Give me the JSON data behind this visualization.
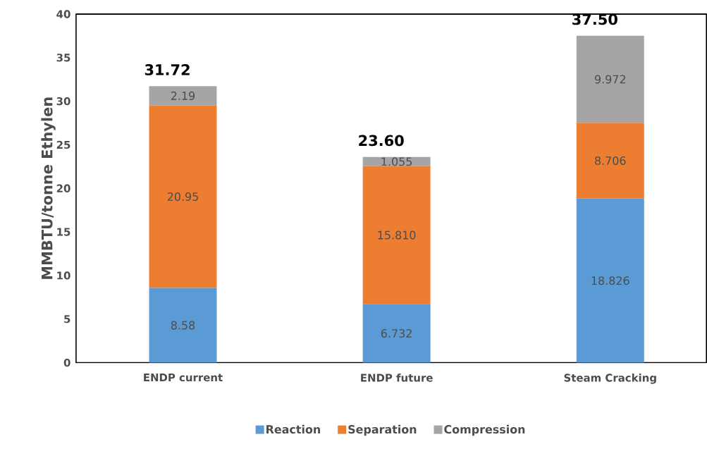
{
  "chart_data": {
    "type": "bar",
    "stacked": true,
    "ylabel": "MMBTU/tonne Ethylen",
    "categories": [
      "ENDP current",
      "ENDP future",
      "Steam Cracking"
    ],
    "series": [
      {
        "name": "Reaction",
        "color": "#5b9bd5",
        "values": [
          8.58,
          6.732,
          18.826
        ],
        "value_labels": [
          "8.58",
          "6.732",
          "18.826"
        ]
      },
      {
        "name": "Separation",
        "color": "#ed7d31",
        "values": [
          20.95,
          15.81,
          8.706
        ],
        "value_labels": [
          "20.95",
          "15.810",
          "8.706"
        ]
      },
      {
        "name": "Compression",
        "color": "#a5a5a5",
        "values": [
          2.19,
          1.055,
          9.972
        ],
        "value_labels": [
          "2.19",
          "1.055",
          "9.972"
        ]
      }
    ],
    "totals": [
      "31.72",
      "23.60",
      "37.50"
    ],
    "ylim": [
      0,
      40
    ],
    "yticks": [
      0,
      5,
      10,
      15,
      20,
      25,
      30,
      35,
      40
    ],
    "grid": false,
    "legend": "bottom"
  }
}
